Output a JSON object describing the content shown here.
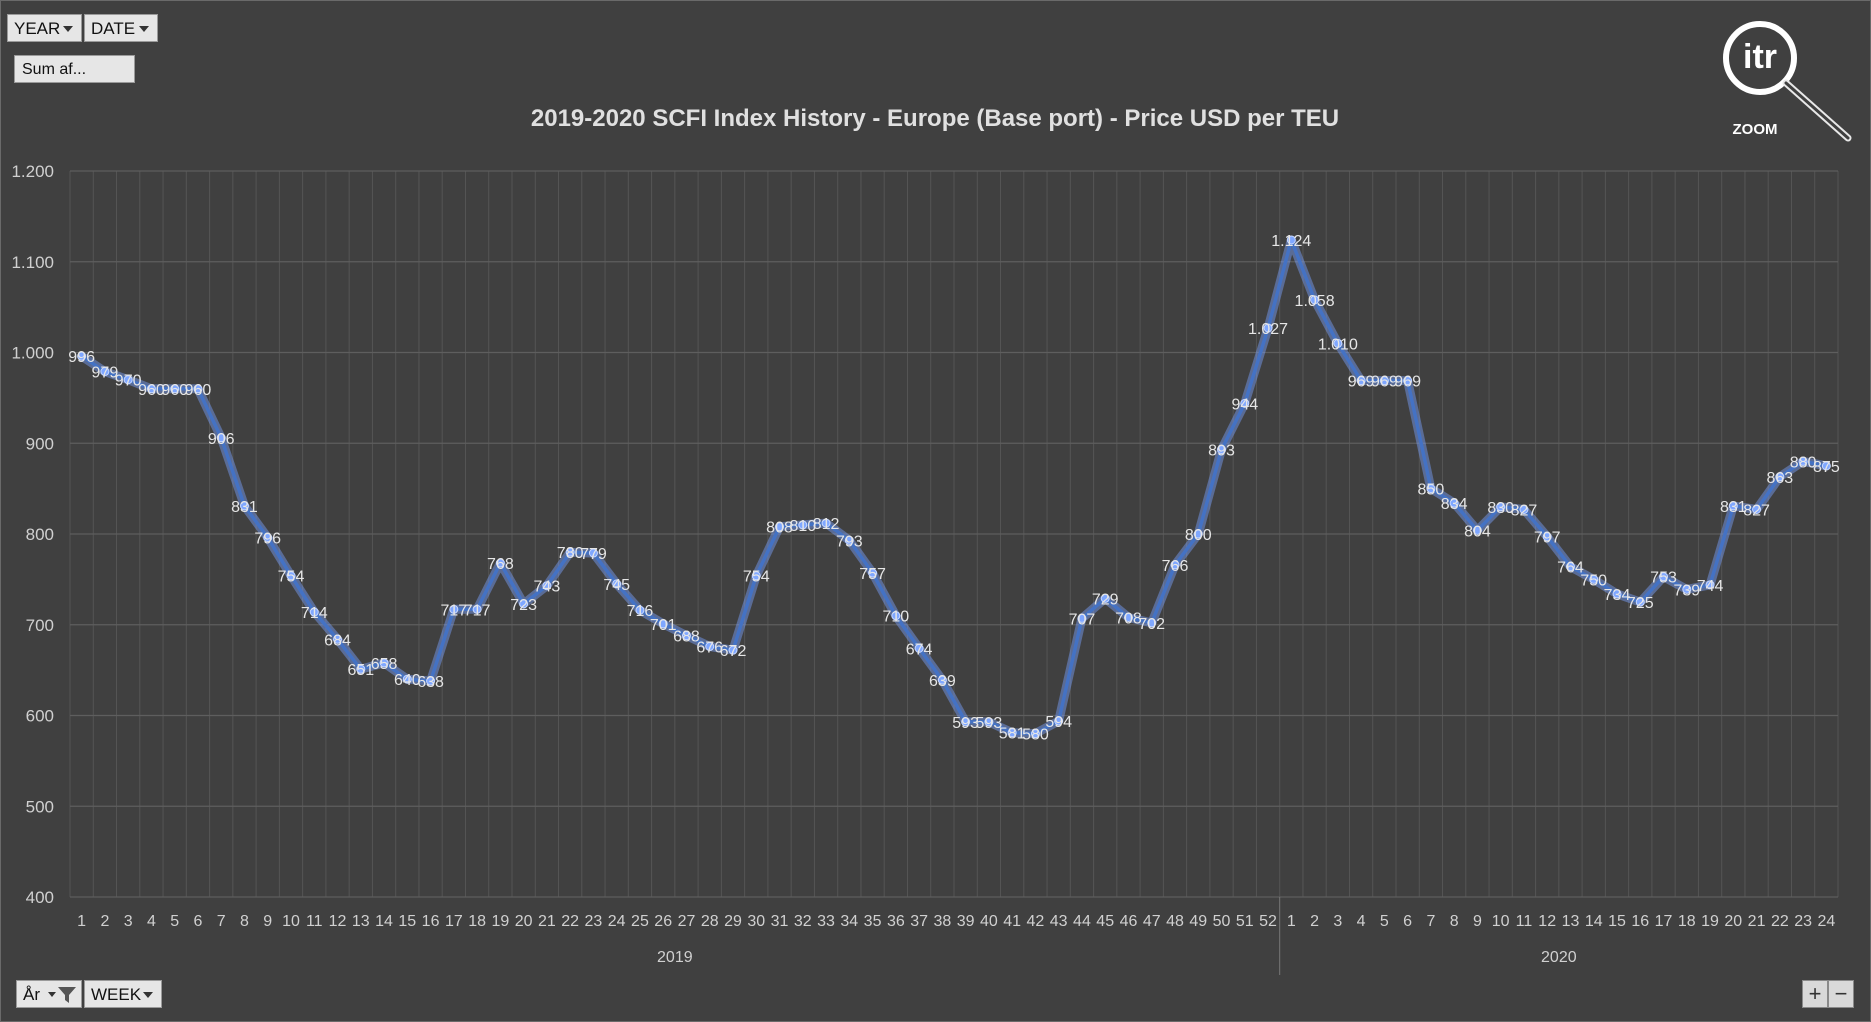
{
  "controls": {
    "year_filter": "YEAR",
    "date_filter": "DATE",
    "values_field": "Sum af...",
    "row_field_year": "År",
    "row_field_week": "WEEK",
    "zoom_in": "+",
    "zoom_out": "−"
  },
  "logo": {
    "text": "itr",
    "caption": "ZOOM"
  },
  "colors": {
    "background": "#404040",
    "line": "#4472C4",
    "grid": "#595959",
    "text": "#d9d9d9"
  },
  "chart_data": {
    "type": "line",
    "title": "2019-2020 SCFI Index History - Europe (Base port) - Price USD per TEU",
    "ylim": [
      400,
      1200
    ],
    "yticks": [
      "400",
      "500",
      "600",
      "700",
      "800",
      "900",
      "1.000",
      "1.100",
      "1.200"
    ],
    "ytick_values": [
      400,
      500,
      600,
      700,
      800,
      900,
      1000,
      1100,
      1200
    ],
    "groups": [
      {
        "name": "2019",
        "weeks": [
          "1",
          "2",
          "3",
          "4",
          "5",
          "6",
          "7",
          "8",
          "9",
          "10",
          "11",
          "12",
          "13",
          "14",
          "15",
          "16",
          "17",
          "18",
          "19",
          "20",
          "21",
          "22",
          "23",
          "24",
          "25",
          "26",
          "27",
          "28",
          "29",
          "30",
          "31",
          "32",
          "33",
          "34",
          "35",
          "36",
          "37",
          "38",
          "39",
          "40",
          "41",
          "42",
          "43",
          "44",
          "45",
          "46",
          "47",
          "48",
          "49",
          "50",
          "51",
          "52"
        ]
      },
      {
        "name": "2020",
        "weeks": [
          "1",
          "2",
          "3",
          "4",
          "5",
          "6",
          "7",
          "8",
          "9",
          "10",
          "11",
          "12",
          "13",
          "14",
          "15",
          "16",
          "17",
          "18",
          "19",
          "20",
          "21",
          "22",
          "23",
          "24"
        ]
      }
    ],
    "values": [
      996,
      979,
      970,
      960,
      960,
      960,
      906,
      831,
      796,
      754,
      714,
      684,
      651,
      658,
      640,
      638,
      717,
      717,
      768,
      723,
      743,
      780,
      779,
      745,
      716,
      701,
      688,
      676,
      672,
      754,
      808,
      810,
      812,
      793,
      757,
      710,
      674,
      639,
      593,
      593,
      581,
      580,
      594,
      707,
      729,
      708,
      702,
      766,
      800,
      893,
      944,
      1027,
      1124,
      1058,
      1010,
      969,
      969,
      969,
      850,
      834,
      804,
      830,
      827,
      797,
      764,
      750,
      734,
      725,
      753,
      739,
      744,
      831,
      827,
      863,
      880,
      875
    ],
    "labels": [
      "996",
      "979",
      "970",
      "960",
      "960",
      "960",
      "906",
      "831",
      "796",
      "754",
      "714",
      "684",
      "651",
      "658",
      "640",
      "638",
      "717",
      "717",
      "768",
      "723",
      "743",
      "780",
      "779",
      "745",
      "716",
      "701",
      "688",
      "676",
      "672",
      "754",
      "808",
      "810",
      "812",
      "793",
      "757",
      "710",
      "674",
      "639",
      "593",
      "593",
      "581",
      "580",
      "594",
      "707",
      "729",
      "708",
      "702",
      "766",
      "800",
      "893",
      "944",
      "1.027",
      "1.124",
      "1.058",
      "1.010",
      "969",
      "969",
      "969",
      "850",
      "834",
      "804",
      "830",
      "827",
      "797",
      "764",
      "750",
      "734",
      "725",
      "753",
      "739",
      "744",
      "831",
      "827",
      "863",
      "880",
      "875"
    ]
  }
}
